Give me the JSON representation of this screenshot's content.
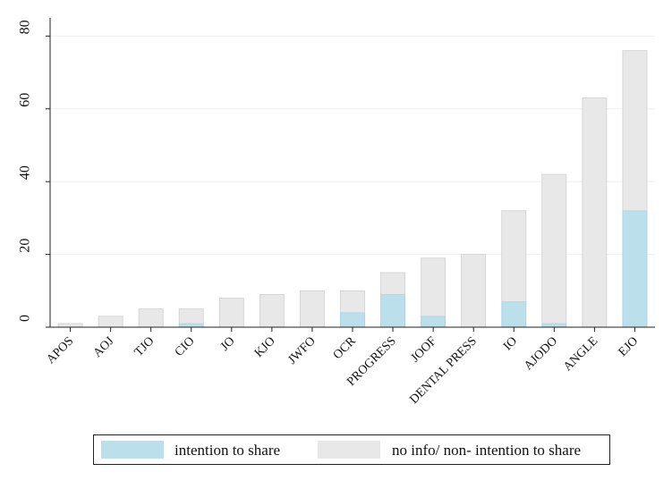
{
  "chart_data": {
    "type": "bar",
    "stacked": true,
    "categories": [
      "APOS",
      "AOJ",
      "TJO",
      "CIO",
      "JO",
      "KJO",
      "JWFO",
      "OCR",
      "PROGRESS",
      "JOOF",
      "DENTAL PRESS",
      "IO",
      "AJODO",
      "ANGLE",
      "EJO"
    ],
    "series": [
      {
        "name": "intention to share",
        "color": "#bcdfec",
        "values": [
          0,
          0,
          0,
          1,
          0,
          0,
          0,
          4,
          9,
          3,
          0,
          7,
          1,
          0,
          32
        ]
      },
      {
        "name": "no info/ non- intention to share",
        "color": "#e8e8e8",
        "values": [
          1,
          3,
          5,
          4,
          8,
          9,
          10,
          6,
          6,
          16,
          20,
          25,
          41,
          63,
          44
        ]
      }
    ],
    "yticks": [
      "0",
      "20",
      "40",
      "60",
      "80"
    ],
    "ylim": [
      0,
      85
    ],
    "grid": true,
    "legend_position": "bottom"
  },
  "legend": {
    "items": [
      "intention to share",
      "no info/ non- intention to share"
    ]
  }
}
